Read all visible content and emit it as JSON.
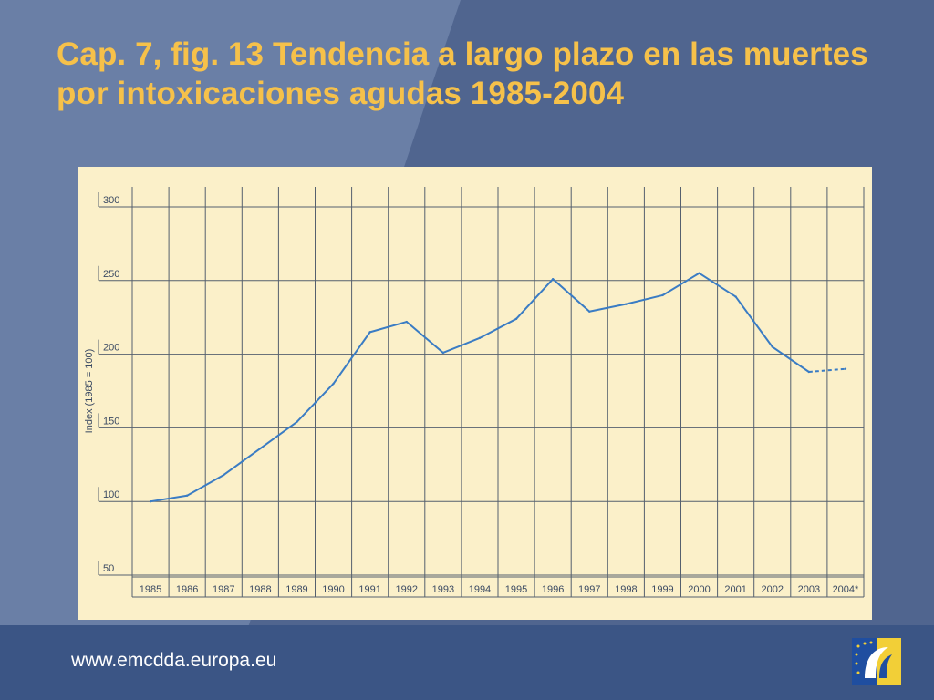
{
  "title": "Cap. 7, fig. 13 Tendencia a largo plazo en las muertes por intoxicaciones agudas 1985-2004",
  "footer": {
    "url": "www.emcdda.europa.eu"
  },
  "colors": {
    "title": "#f6c14a",
    "background": "#50658f",
    "panel": "#fbf0c9",
    "line": "#3a7cc4",
    "footer": "#3b5585"
  },
  "icons": {
    "logo": "emcdda-logo-icon"
  },
  "chart_data": {
    "type": "line",
    "xlabel": "",
    "ylabel": "Index  (1985 = 100)",
    "categories": [
      "1985",
      "1986",
      "1987",
      "1988",
      "1989",
      "1990",
      "1991",
      "1992",
      "1993",
      "1994",
      "1995",
      "1996",
      "1997",
      "1998",
      "1999",
      "2000",
      "2001",
      "2002",
      "2003",
      "2004*"
    ],
    "series": [
      {
        "values": [
          100,
          104,
          118,
          136,
          154,
          180,
          215,
          222,
          201,
          211,
          224,
          251,
          229,
          234,
          240,
          255,
          239,
          205,
          188,
          190
        ],
        "dashed_from_index": 18
      }
    ],
    "yticks": [
      50,
      100,
      150,
      200,
      250,
      300
    ],
    "ylim": [
      50,
      300
    ],
    "grid": true
  }
}
